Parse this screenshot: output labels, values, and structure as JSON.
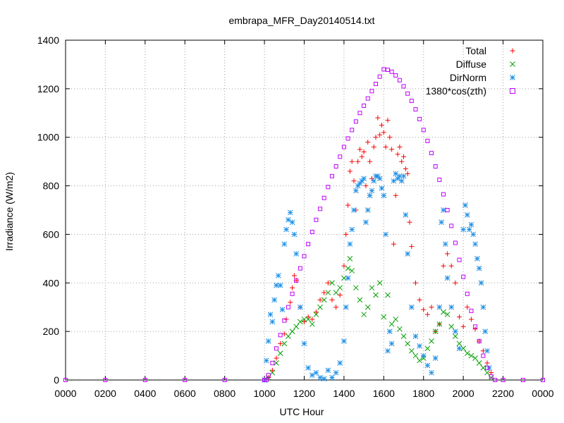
{
  "chart_data": {
    "type": "scatter",
    "title": "embrapa_MFR_Day20140514.txt",
    "xlabel": "UTC Hour",
    "ylabel": "Irradiance (W/m2)",
    "xlim": [
      0,
      2400
    ],
    "ylim": [
      0,
      1400
    ],
    "xticks": [
      "0000",
      "0200",
      "0400",
      "0600",
      "0800",
      "1000",
      "1200",
      "1400",
      "1600",
      "1800",
      "2000",
      "2200",
      "0000"
    ],
    "yticks": [
      "0",
      "200",
      "400",
      "600",
      "800",
      "1000",
      "1200",
      "1400"
    ],
    "grid": true,
    "legend_position": "top-right",
    "series": [
      {
        "name": "Total",
        "marker": "plus",
        "color": "#ff0000",
        "points": [
          [
            1020,
            10
          ],
          [
            1040,
            40
          ],
          [
            1060,
            90
          ],
          [
            1080,
            150
          ],
          [
            1100,
            190
          ],
          [
            1110,
            250
          ],
          [
            1130,
            320
          ],
          [
            1140,
            380
          ],
          [
            1150,
            430
          ],
          [
            1160,
            410
          ],
          [
            1180,
            300
          ],
          [
            1200,
            240
          ],
          [
            1220,
            260
          ],
          [
            1240,
            250
          ],
          [
            1260,
            280
          ],
          [
            1280,
            330
          ],
          [
            1300,
            360
          ],
          [
            1320,
            400
          ],
          [
            1340,
            330
          ],
          [
            1360,
            300
          ],
          [
            1380,
            350
          ],
          [
            1400,
            470
          ],
          [
            1410,
            600
          ],
          [
            1420,
            720
          ],
          [
            1430,
            860
          ],
          [
            1440,
            900
          ],
          [
            1450,
            820
          ],
          [
            1460,
            700
          ],
          [
            1470,
            900
          ],
          [
            1480,
            950
          ],
          [
            1490,
            920
          ],
          [
            1500,
            940
          ],
          [
            1510,
            800
          ],
          [
            1520,
            980
          ],
          [
            1530,
            900
          ],
          [
            1540,
            830
          ],
          [
            1550,
            960
          ],
          [
            1560,
            1000
          ],
          [
            1570,
            1080
          ],
          [
            1580,
            1010
          ],
          [
            1590,
            1050
          ],
          [
            1600,
            1020
          ],
          [
            1610,
            960
          ],
          [
            1620,
            1070
          ],
          [
            1630,
            1000
          ],
          [
            1640,
            950
          ],
          [
            1650,
            560
          ],
          [
            1660,
            760
          ],
          [
            1670,
            930
          ],
          [
            1680,
            960
          ],
          [
            1690,
            900
          ],
          [
            1700,
            920
          ],
          [
            1710,
            870
          ],
          [
            1720,
            850
          ],
          [
            1730,
            650
          ],
          [
            1740,
            550
          ],
          [
            1760,
            400
          ],
          [
            1780,
            330
          ],
          [
            1800,
            290
          ],
          [
            1820,
            270
          ],
          [
            1840,
            300
          ],
          [
            1860,
            200
          ],
          [
            1880,
            230
          ],
          [
            1900,
            470
          ],
          [
            1920,
            520
          ],
          [
            1940,
            470
          ],
          [
            1960,
            400
          ],
          [
            1980,
            260
          ],
          [
            2000,
            220
          ],
          [
            2020,
            300
          ],
          [
            2040,
            250
          ],
          [
            2060,
            210
          ],
          [
            2080,
            160
          ],
          [
            2100,
            120
          ],
          [
            2120,
            70
          ],
          [
            2140,
            30
          ]
        ]
      },
      {
        "name": "Diffuse",
        "marker": "cross",
        "color": "#00a000",
        "points": [
          [
            1020,
            10
          ],
          [
            1040,
            30
          ],
          [
            1060,
            70
          ],
          [
            1080,
            110
          ],
          [
            1100,
            150
          ],
          [
            1120,
            180
          ],
          [
            1140,
            200
          ],
          [
            1160,
            220
          ],
          [
            1180,
            240
          ],
          [
            1200,
            250
          ],
          [
            1220,
            250
          ],
          [
            1240,
            230
          ],
          [
            1260,
            270
          ],
          [
            1280,
            300
          ],
          [
            1300,
            330
          ],
          [
            1320,
            360
          ],
          [
            1340,
            400
          ],
          [
            1360,
            360
          ],
          [
            1380,
            380
          ],
          [
            1400,
            420
          ],
          [
            1420,
            460
          ],
          [
            1430,
            500
          ],
          [
            1440,
            450
          ],
          [
            1460,
            380
          ],
          [
            1480,
            330
          ],
          [
            1500,
            270
          ],
          [
            1520,
            300
          ],
          [
            1540,
            380
          ],
          [
            1560,
            350
          ],
          [
            1580,
            400
          ],
          [
            1600,
            260
          ],
          [
            1620,
            350
          ],
          [
            1640,
            230
          ],
          [
            1660,
            250
          ],
          [
            1680,
            210
          ],
          [
            1700,
            180
          ],
          [
            1720,
            150
          ],
          [
            1740,
            120
          ],
          [
            1760,
            100
          ],
          [
            1780,
            80
          ],
          [
            1800,
            90
          ],
          [
            1820,
            130
          ],
          [
            1840,
            160
          ],
          [
            1860,
            200
          ],
          [
            1880,
            230
          ],
          [
            1900,
            280
          ],
          [
            1920,
            270
          ],
          [
            1940,
            220
          ],
          [
            1960,
            180
          ],
          [
            1980,
            150
          ],
          [
            2000,
            130
          ],
          [
            2020,
            110
          ],
          [
            2040,
            100
          ],
          [
            2060,
            90
          ],
          [
            2080,
            70
          ],
          [
            2100,
            50
          ],
          [
            2120,
            30
          ],
          [
            2140,
            10
          ]
        ]
      },
      {
        "name": "DirNorm",
        "marker": "star",
        "color": "#1e90e6",
        "points": [
          [
            1000,
            0
          ],
          [
            1010,
            80
          ],
          [
            1020,
            160
          ],
          [
            1030,
            270
          ],
          [
            1040,
            240
          ],
          [
            1050,
            330
          ],
          [
            1060,
            390
          ],
          [
            1070,
            430
          ],
          [
            1080,
            390
          ],
          [
            1090,
            290
          ],
          [
            1100,
            560
          ],
          [
            1110,
            620
          ],
          [
            1120,
            660
          ],
          [
            1130,
            690
          ],
          [
            1140,
            650
          ],
          [
            1150,
            600
          ],
          [
            1160,
            520
          ],
          [
            1180,
            300
          ],
          [
            1200,
            150
          ],
          [
            1220,
            50
          ],
          [
            1240,
            20
          ],
          [
            1260,
            30
          ],
          [
            1280,
            10
          ],
          [
            1300,
            5
          ],
          [
            1320,
            40
          ],
          [
            1340,
            10
          ],
          [
            1360,
            30
          ],
          [
            1380,
            70
          ],
          [
            1400,
            160
          ],
          [
            1410,
            300
          ],
          [
            1420,
            420
          ],
          [
            1430,
            560
          ],
          [
            1440,
            620
          ],
          [
            1450,
            700
          ],
          [
            1460,
            780
          ],
          [
            1470,
            800
          ],
          [
            1480,
            810
          ],
          [
            1490,
            820
          ],
          [
            1500,
            830
          ],
          [
            1510,
            650
          ],
          [
            1520,
            700
          ],
          [
            1530,
            760
          ],
          [
            1540,
            780
          ],
          [
            1550,
            820
          ],
          [
            1560,
            840
          ],
          [
            1570,
            840
          ],
          [
            1580,
            830
          ],
          [
            1590,
            790
          ],
          [
            1600,
            760
          ],
          [
            1610,
            600
          ],
          [
            1620,
            120
          ],
          [
            1630,
            200
          ],
          [
            1640,
            150
          ],
          [
            1650,
            820
          ],
          [
            1660,
            850
          ],
          [
            1670,
            830
          ],
          [
            1680,
            840
          ],
          [
            1690,
            820
          ],
          [
            1700,
            840
          ],
          [
            1710,
            680
          ],
          [
            1720,
            520
          ],
          [
            1740,
            300
          ],
          [
            1760,
            180
          ],
          [
            1780,
            140
          ],
          [
            1800,
            100
          ],
          [
            1820,
            60
          ],
          [
            1840,
            30
          ],
          [
            1860,
            90
          ],
          [
            1880,
            300
          ],
          [
            1890,
            650
          ],
          [
            1900,
            700
          ],
          [
            1910,
            560
          ],
          [
            1920,
            420
          ],
          [
            1940,
            300
          ],
          [
            1960,
            200
          ],
          [
            1980,
            130
          ],
          [
            2000,
            620
          ],
          [
            2010,
            720
          ],
          [
            2020,
            680
          ],
          [
            2030,
            620
          ],
          [
            2040,
            640
          ],
          [
            2050,
            600
          ],
          [
            2060,
            560
          ],
          [
            2070,
            500
          ],
          [
            2080,
            460
          ],
          [
            2090,
            400
          ],
          [
            2100,
            300
          ],
          [
            2110,
            200
          ],
          [
            2120,
            120
          ],
          [
            2130,
            50
          ]
        ]
      },
      {
        "name": "1380*cos(zth)",
        "marker": "square",
        "color": "#c000ff",
        "points": [
          [
            0,
            0
          ],
          [
            200,
            0
          ],
          [
            400,
            0
          ],
          [
            600,
            0
          ],
          [
            800,
            0
          ],
          [
            1000,
            0
          ],
          [
            1010,
            0
          ],
          [
            1020,
            20
          ],
          [
            1040,
            70
          ],
          [
            1060,
            130
          ],
          [
            1080,
            185
          ],
          [
            1100,
            245
          ],
          [
            1120,
            300
          ],
          [
            1140,
            355
          ],
          [
            1160,
            410
          ],
          [
            1180,
            460
          ],
          [
            1200,
            510
          ],
          [
            1220,
            560
          ],
          [
            1240,
            610
          ],
          [
            1260,
            660
          ],
          [
            1280,
            705
          ],
          [
            1300,
            750
          ],
          [
            1320,
            795
          ],
          [
            1340,
            840
          ],
          [
            1360,
            880
          ],
          [
            1380,
            920
          ],
          [
            1400,
            960
          ],
          [
            1420,
            995
          ],
          [
            1440,
            1030
          ],
          [
            1460,
            1065
          ],
          [
            1480,
            1100
          ],
          [
            1500,
            1130
          ],
          [
            1520,
            1160
          ],
          [
            1540,
            1190
          ],
          [
            1560,
            1220
          ],
          [
            1580,
            1250
          ],
          [
            1600,
            1280
          ],
          [
            1620,
            1278
          ],
          [
            1640,
            1270
          ],
          [
            1660,
            1255
          ],
          [
            1680,
            1235
          ],
          [
            1700,
            1210
          ],
          [
            1720,
            1180
          ],
          [
            1740,
            1150
          ],
          [
            1760,
            1115
          ],
          [
            1780,
            1075
          ],
          [
            1800,
            1030
          ],
          [
            1820,
            985
          ],
          [
            1840,
            935
          ],
          [
            1860,
            880
          ],
          [
            1880,
            825
          ],
          [
            1900,
            765
          ],
          [
            1920,
            700
          ],
          [
            1940,
            635
          ],
          [
            1960,
            565
          ],
          [
            1980,
            495
          ],
          [
            2000,
            425
          ],
          [
            2020,
            355
          ],
          [
            2040,
            285
          ],
          [
            2060,
            220
          ],
          [
            2080,
            160
          ],
          [
            2100,
            100
          ],
          [
            2120,
            50
          ],
          [
            2140,
            15
          ],
          [
            2160,
            0
          ],
          [
            2200,
            0
          ],
          [
            2300,
            0
          ],
          [
            2400,
            0
          ]
        ]
      }
    ]
  }
}
